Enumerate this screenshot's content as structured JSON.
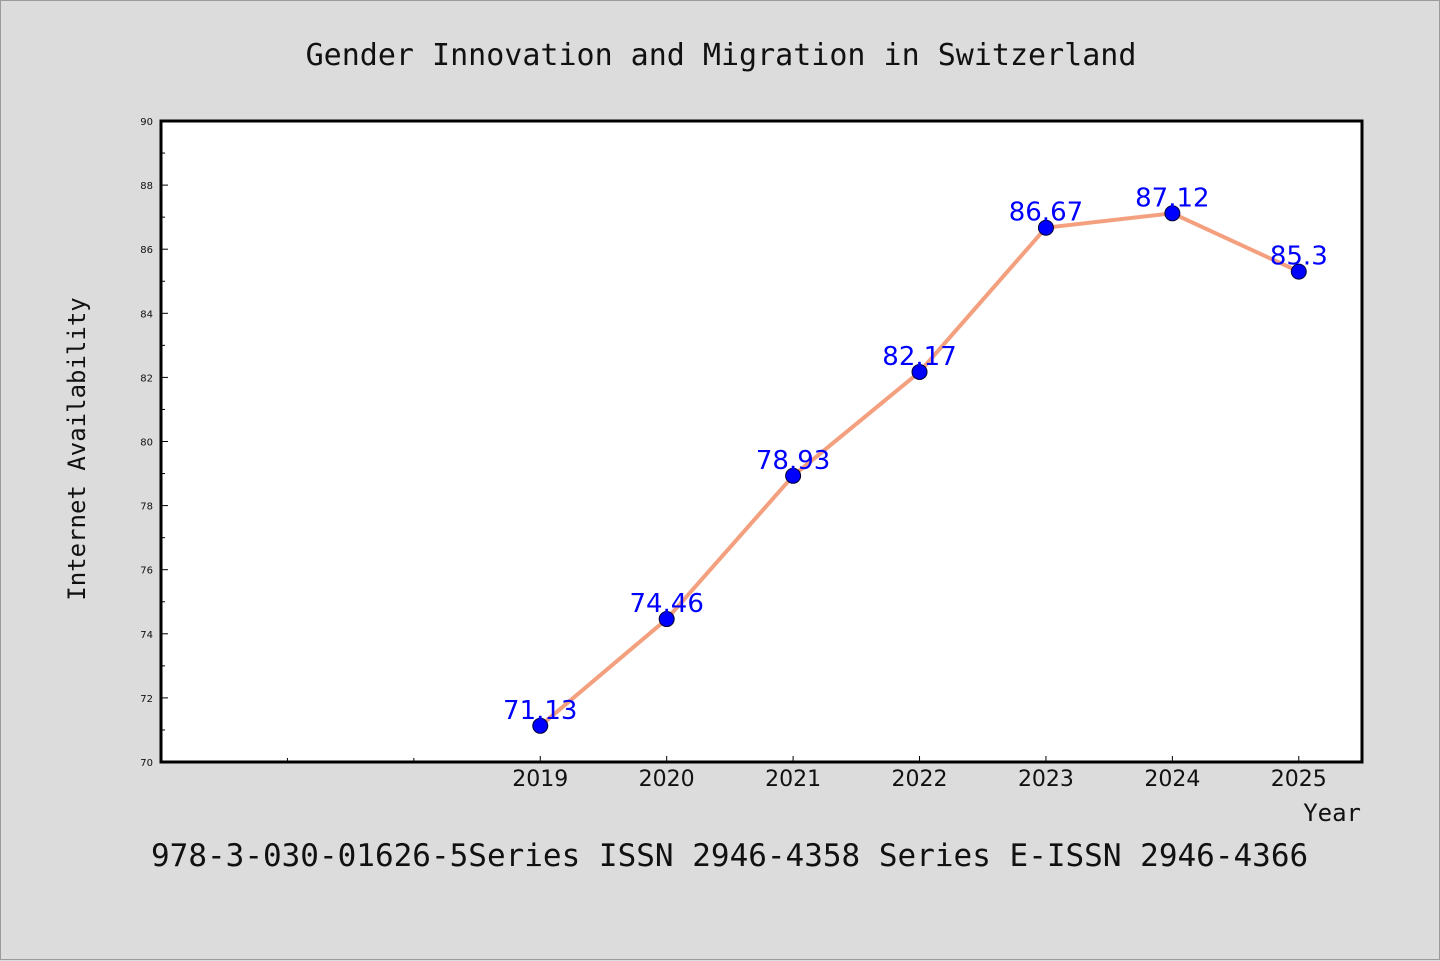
{
  "chart_data": {
    "type": "line",
    "title": "Gender Innovation and Migration in Switzerland",
    "xlabel": "Year",
    "ylabel": "Internet Availability",
    "x_domain": [
      2016,
      2025.5
    ],
    "ylim": [
      70,
      90
    ],
    "yticks": [
      70,
      72,
      74,
      76,
      78,
      80,
      82,
      84,
      86,
      88,
      90
    ],
    "x": [
      2019,
      2020,
      2021,
      2022,
      2023,
      2024,
      2025
    ],
    "series": [
      {
        "values": [
          71.13,
          74.46,
          78.93,
          82.17,
          86.67,
          87.12,
          85.3
        ],
        "labels": [
          "71.13",
          "74.46",
          "78.93",
          "82.17",
          "86.67",
          "87.12",
          "85.3"
        ],
        "line_color": "#f4a07e",
        "marker_color": "#0000ff",
        "label_color": "#0000ff"
      }
    ],
    "grid": false,
    "legend": "none"
  },
  "footer": "978-3-030-01626-5Series ISSN 2946-4358 Series E-ISSN 2946-4366"
}
